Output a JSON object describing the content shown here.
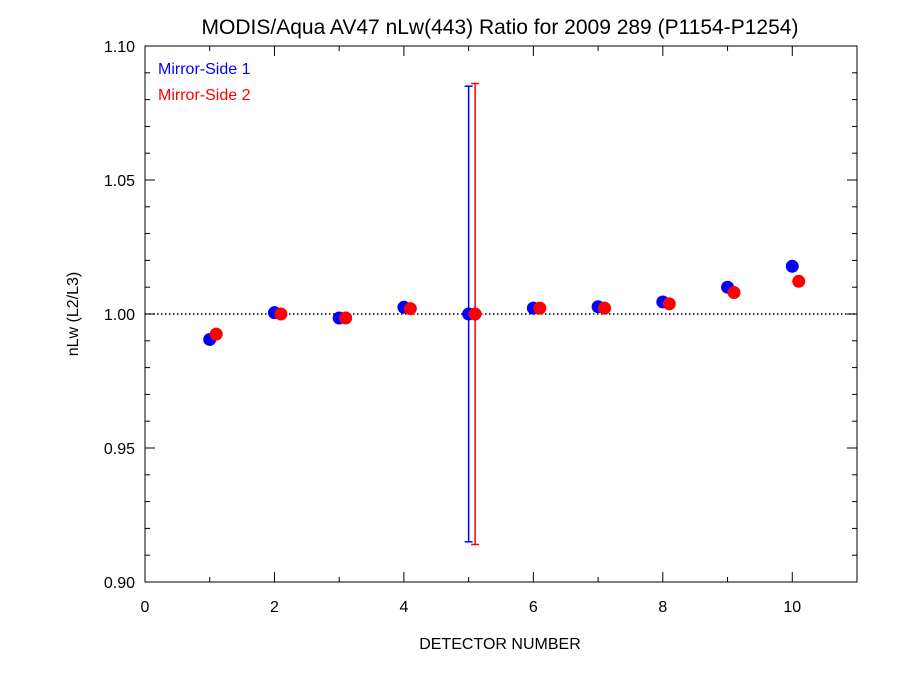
{
  "chart_data": {
    "type": "scatter",
    "title": "MODIS/Aqua AV47 nLw(443) Ratio for 2009 289 (P1154-P1254)",
    "xlabel": "DETECTOR NUMBER",
    "ylabel": "nLw (L2/L3)",
    "xlim": [
      0,
      11
    ],
    "ylim": [
      0.9,
      1.1
    ],
    "xticks": [
      0,
      2,
      4,
      6,
      8,
      10
    ],
    "xtick_labels": [
      "0",
      "2",
      "4",
      "6",
      "8",
      "10"
    ],
    "yticks": [
      0.9,
      0.95,
      1.0,
      1.05,
      1.1
    ],
    "ytick_labels": [
      "0.90",
      "0.95",
      "1.00",
      "1.05",
      "1.10"
    ],
    "reference_line": 1.0,
    "legend_position": "top-left",
    "series": [
      {
        "name": "Mirror-Side 1",
        "color": "#0000ff",
        "x_offset": 0,
        "x": [
          1,
          2,
          3,
          4,
          5,
          6,
          7,
          8,
          9,
          10
        ],
        "y": [
          0.9905,
          1.0005,
          0.9985,
          1.0025,
          1.0,
          1.0022,
          1.0027,
          1.0045,
          1.01,
          1.0178
        ],
        "error_bars": [
          {
            "x": 5,
            "low": 0.915,
            "high": 1.085
          }
        ]
      },
      {
        "name": "Mirror-Side 2",
        "color": "#ff0000",
        "x_offset": 0.1,
        "x": [
          1,
          2,
          3,
          4,
          5,
          6,
          7,
          8,
          9,
          10
        ],
        "y": [
          0.9925,
          1.0,
          0.9985,
          1.002,
          1.0,
          1.0022,
          1.0022,
          1.0038,
          1.008,
          1.0122
        ],
        "error_bars": [
          {
            "x": 5,
            "low": 0.914,
            "high": 1.086
          }
        ]
      }
    ]
  }
}
